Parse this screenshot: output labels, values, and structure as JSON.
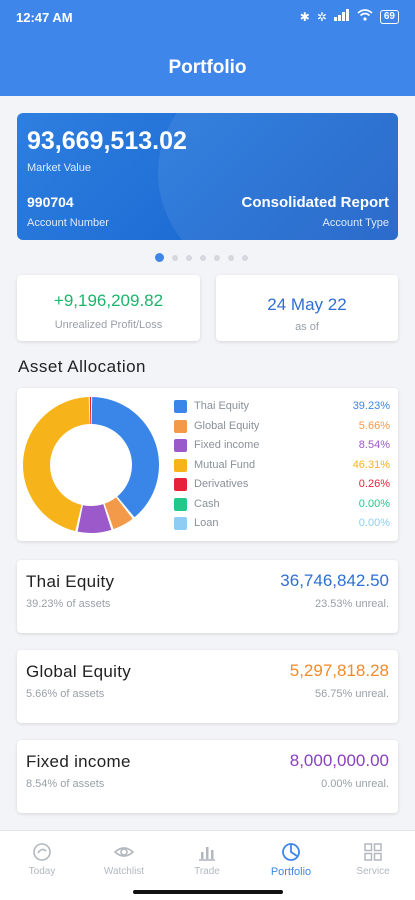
{
  "status": {
    "time": "12:47 AM",
    "battery": "69"
  },
  "header": {
    "title": "Portfolio"
  },
  "account": {
    "market_value": "93,669,513.02",
    "market_value_label": "Market Value",
    "account_number": "990704",
    "account_number_label": "Account Number",
    "account_type": "Consolidated Report",
    "account_type_label": "Account Type"
  },
  "carousel": {
    "count": 7,
    "active": 0
  },
  "summary": {
    "unrealized_pl": "+9,196,209.82",
    "unrealized_pl_label": "Unrealized Profit/Loss",
    "as_of_date": "24 May 22",
    "as_of_label": "as of"
  },
  "allocation": {
    "title": "Asset Allocation",
    "items": [
      {
        "name": "Thai Equity",
        "pct": "39.23%",
        "value": 39.23,
        "color": "#3a86e8"
      },
      {
        "name": "Global Equity",
        "pct": "5.66%",
        "value": 5.66,
        "color": "#f39a4a"
      },
      {
        "name": "Fixed income",
        "pct": "8.54%",
        "value": 8.54,
        "color": "#9b59c9"
      },
      {
        "name": "Mutual Fund",
        "pct": "46.31%",
        "value": 46.31,
        "color": "#f7b31a"
      },
      {
        "name": "Derivatives",
        "pct": "0.26%",
        "value": 0.26,
        "color": "#e8213a"
      },
      {
        "name": "Cash",
        "pct": "0.00%",
        "value": 0.0,
        "color": "#22c88a"
      },
      {
        "name": "Loan",
        "pct": "0.00%",
        "value": 0.0,
        "color": "#8fcdf5"
      }
    ]
  },
  "assets": [
    {
      "name": "Thai Equity",
      "sub": "39.23% of assets",
      "value": "36,746,842.50",
      "unreal": "23.53% unreal.",
      "color": "#2f6fd4"
    },
    {
      "name": "Global Equity",
      "sub": "5.66% of assets",
      "value": "5,297,818.28",
      "unreal": "56.75% unreal.",
      "color": "#f08a2a"
    },
    {
      "name": "Fixed income",
      "sub": "8.54% of assets",
      "value": "8,000,000.00",
      "unreal": "0.00% unreal.",
      "color": "#8a3fc0"
    }
  ],
  "nav": [
    {
      "label": "Today",
      "icon": "today-icon"
    },
    {
      "label": "Watchlist",
      "icon": "eye-icon"
    },
    {
      "label": "Trade",
      "icon": "chart-icon"
    },
    {
      "label": "Portfolio",
      "icon": "portfolio-icon",
      "active": true
    },
    {
      "label": "Service",
      "icon": "grid-icon"
    }
  ]
}
